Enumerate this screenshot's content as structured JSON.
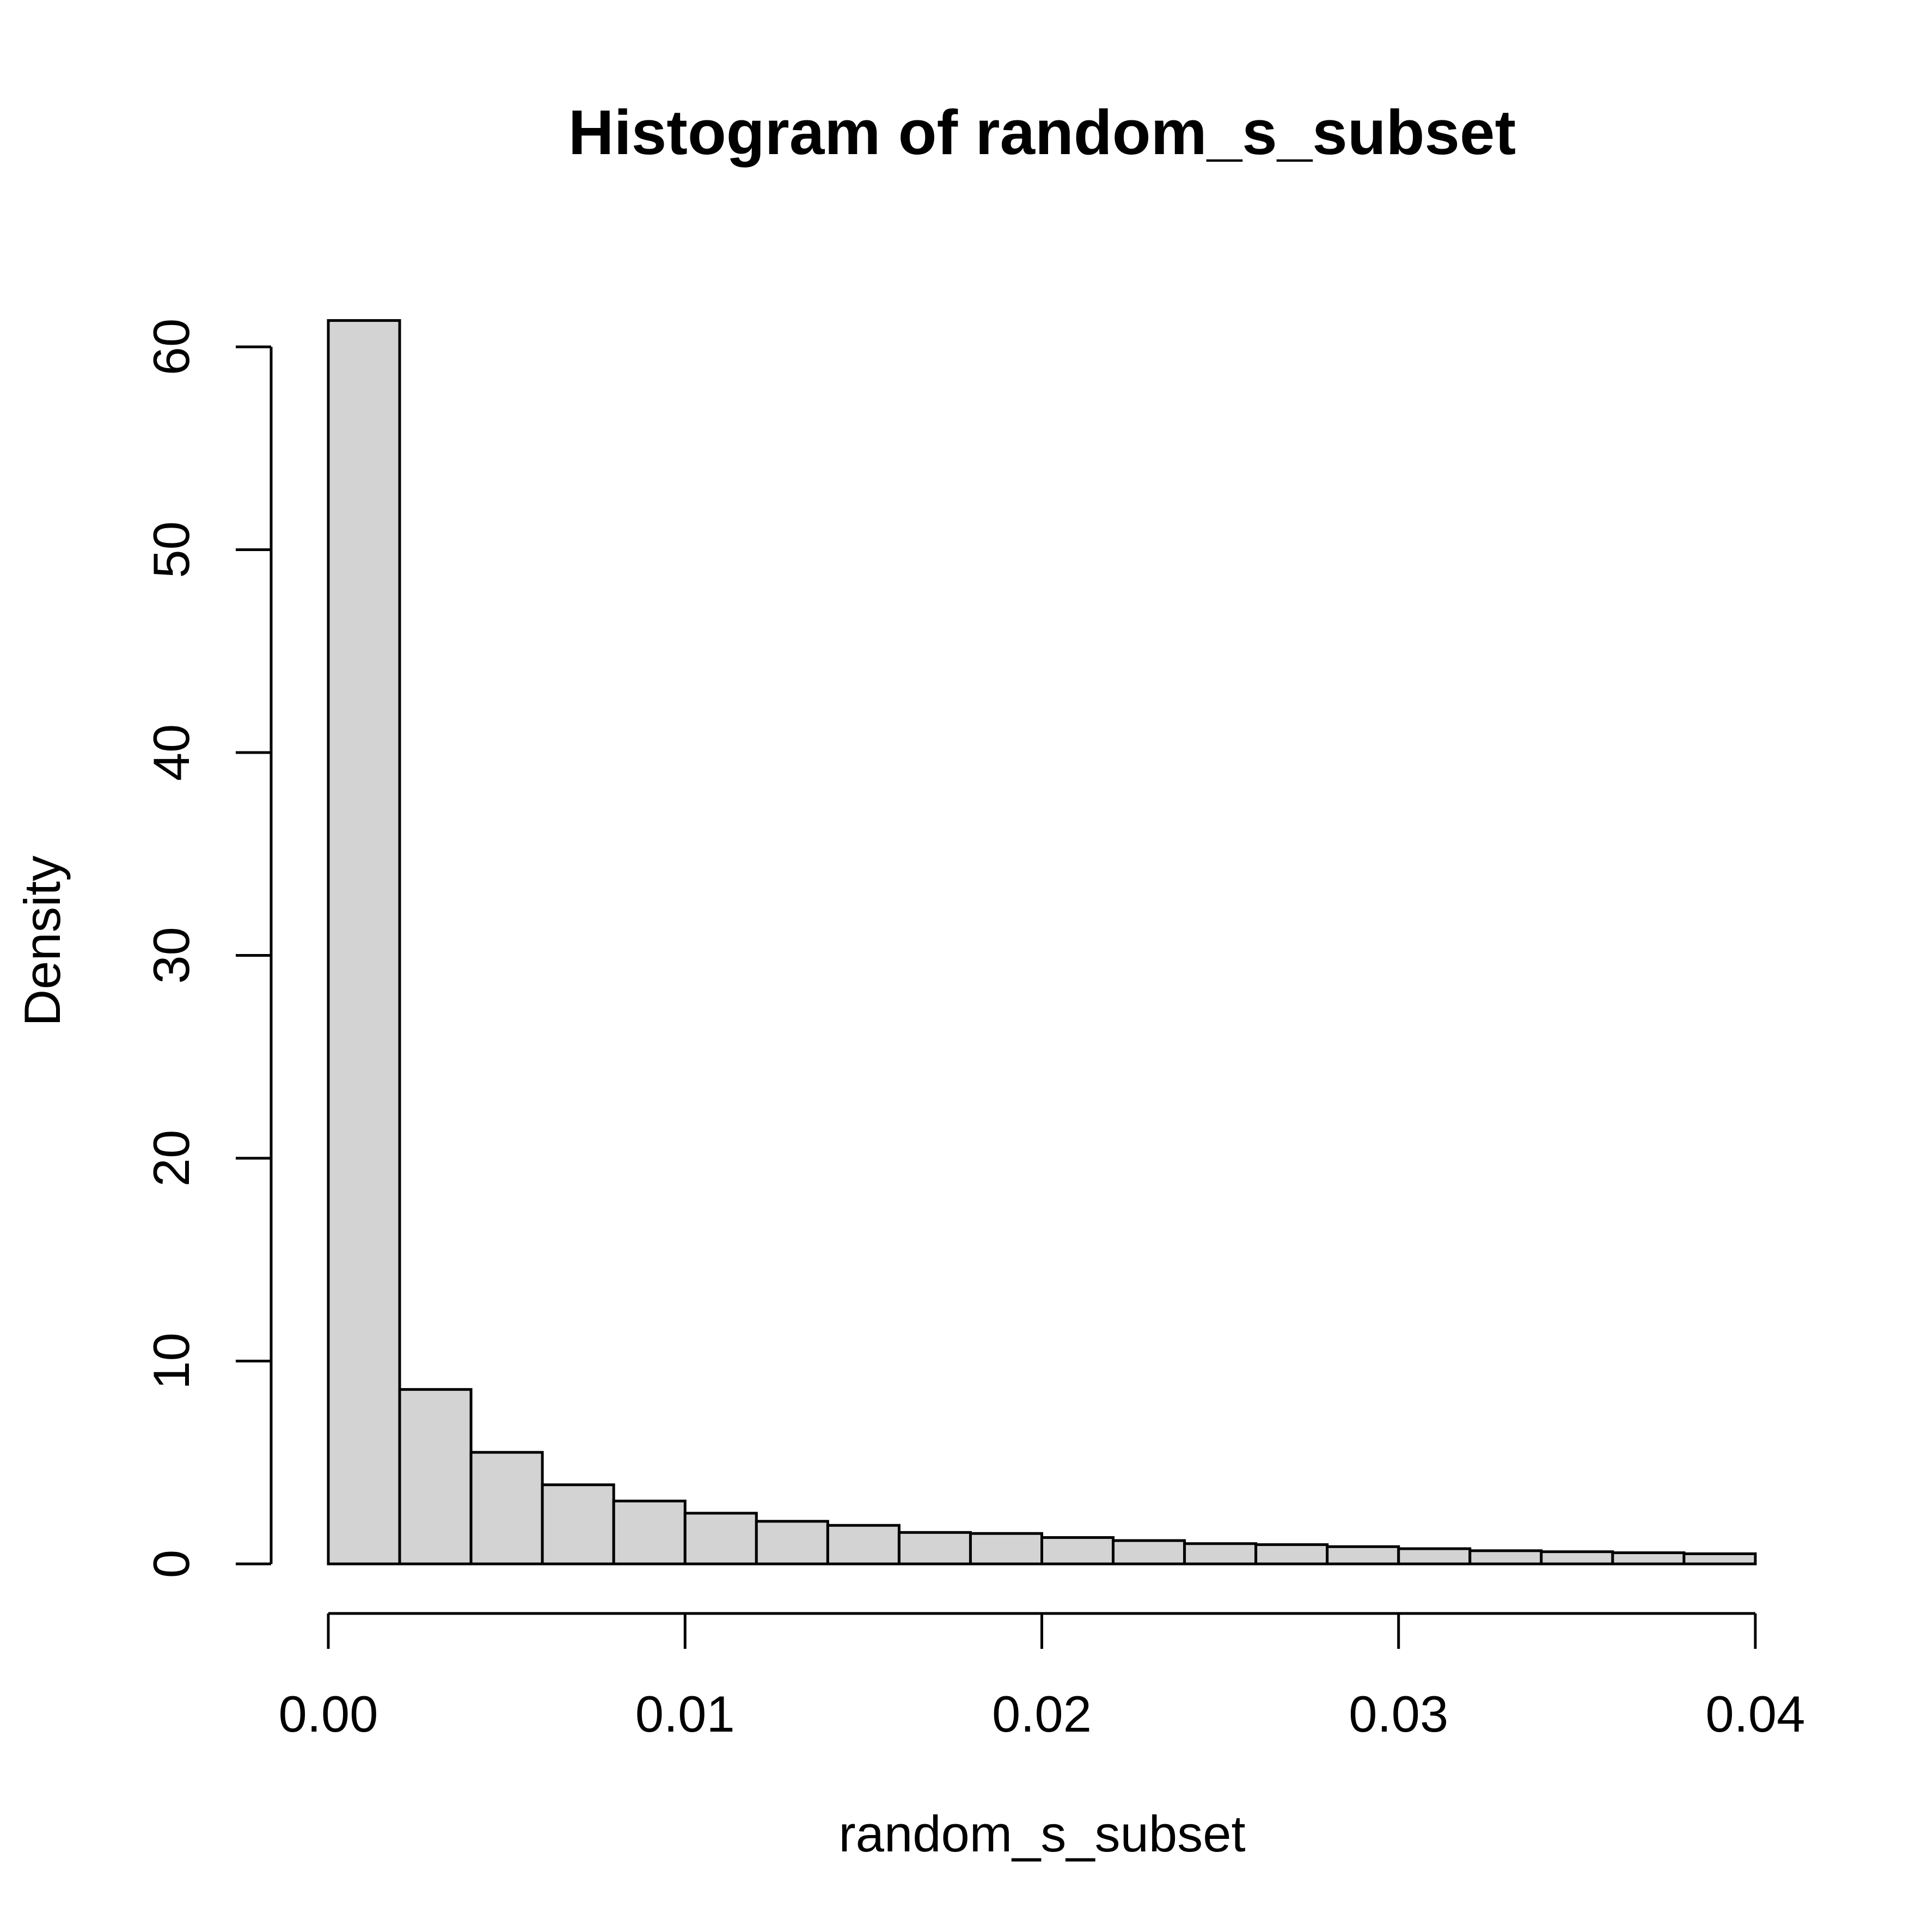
{
  "chart_data": {
    "type": "bar",
    "title": "Histogram of random_s_subset",
    "xlabel": "random_s_subset",
    "ylabel": "Density",
    "xlim": [
      0.0,
      0.04
    ],
    "ylim": [
      0,
      62
    ],
    "x_ticks": [
      "0.00",
      "0.01",
      "0.02",
      "0.03",
      "0.04"
    ],
    "y_ticks": [
      "0",
      "10",
      "20",
      "30",
      "40",
      "50",
      "60"
    ],
    "bin_width": 0.002,
    "bins": [
      {
        "x0": 0.0,
        "x1": 0.002,
        "density": 61.3
      },
      {
        "x0": 0.002,
        "x1": 0.004,
        "density": 8.6
      },
      {
        "x0": 0.004,
        "x1": 0.006,
        "density": 5.5
      },
      {
        "x0": 0.006,
        "x1": 0.008,
        "density": 3.9
      },
      {
        "x0": 0.008,
        "x1": 0.01,
        "density": 3.1
      },
      {
        "x0": 0.01,
        "x1": 0.012,
        "density": 2.5
      },
      {
        "x0": 0.012,
        "x1": 0.014,
        "density": 2.1
      },
      {
        "x0": 0.014,
        "x1": 0.016,
        "density": 1.9
      },
      {
        "x0": 0.016,
        "x1": 0.018,
        "density": 1.55
      },
      {
        "x0": 0.018,
        "x1": 0.02,
        "density": 1.5
      },
      {
        "x0": 0.02,
        "x1": 0.022,
        "density": 1.3
      },
      {
        "x0": 0.022,
        "x1": 0.024,
        "density": 1.15
      },
      {
        "x0": 0.024,
        "x1": 0.026,
        "density": 1.0
      },
      {
        "x0": 0.026,
        "x1": 0.028,
        "density": 0.95
      },
      {
        "x0": 0.028,
        "x1": 0.03,
        "density": 0.85
      },
      {
        "x0": 0.03,
        "x1": 0.032,
        "density": 0.75
      },
      {
        "x0": 0.032,
        "x1": 0.034,
        "density": 0.65
      },
      {
        "x0": 0.034,
        "x1": 0.036,
        "density": 0.6
      },
      {
        "x0": 0.036,
        "x1": 0.038,
        "density": 0.55
      },
      {
        "x0": 0.038,
        "x1": 0.04,
        "density": 0.5
      }
    ],
    "colors": {
      "bar_fill": "#d3d3d3",
      "bar_stroke": "#000000"
    },
    "grid": false,
    "legend": "none"
  }
}
